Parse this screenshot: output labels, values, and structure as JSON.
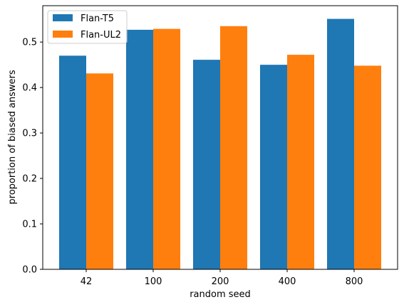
{
  "chart_data": {
    "type": "bar",
    "categories": [
      "42",
      "100",
      "200",
      "400",
      "800"
    ],
    "series": [
      {
        "name": "Flan-T5",
        "color": "#1f77b4",
        "values": [
          0.47,
          0.527,
          0.461,
          0.45,
          0.551
        ]
      },
      {
        "name": "Flan-UL2",
        "color": "#ff7f0e",
        "values": [
          0.431,
          0.529,
          0.535,
          0.472,
          0.448
        ]
      }
    ],
    "xlabel": "random seed",
    "ylabel": "proportion of biased answers",
    "ylim": [
      0,
      0.58
    ],
    "yticks": [
      "0.0",
      "0.1",
      "0.2",
      "0.3",
      "0.4",
      "0.5"
    ],
    "grid": false,
    "legend_position": "top-left"
  }
}
